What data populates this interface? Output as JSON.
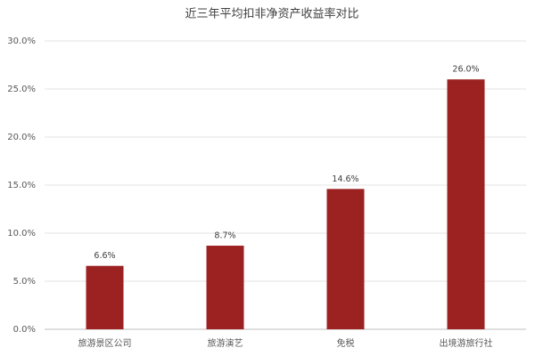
{
  "chart_data": {
    "type": "bar",
    "title": "近三年平均扣非净资产收益率对比",
    "categories": [
      "旅游景区公司",
      "旅游演艺",
      "免税",
      "出境游旅行社"
    ],
    "values": [
      6.6,
      8.7,
      14.6,
      26.0
    ],
    "value_labels": [
      "6.6%",
      "8.7%",
      "14.6%",
      "26.0%"
    ],
    "color": "#9c2222",
    "ylim": [
      0,
      30
    ],
    "yticks": [
      {
        "value": 0,
        "label": "0.0%"
      },
      {
        "value": 5,
        "label": "5.0%"
      },
      {
        "value": 10,
        "label": "10.0%"
      },
      {
        "value": 15,
        "label": "15.0%"
      },
      {
        "value": 20,
        "label": "20.0%"
      },
      {
        "value": 25,
        "label": "25.0%"
      },
      {
        "value": 30,
        "label": "30.0%"
      }
    ],
    "grid": true
  }
}
